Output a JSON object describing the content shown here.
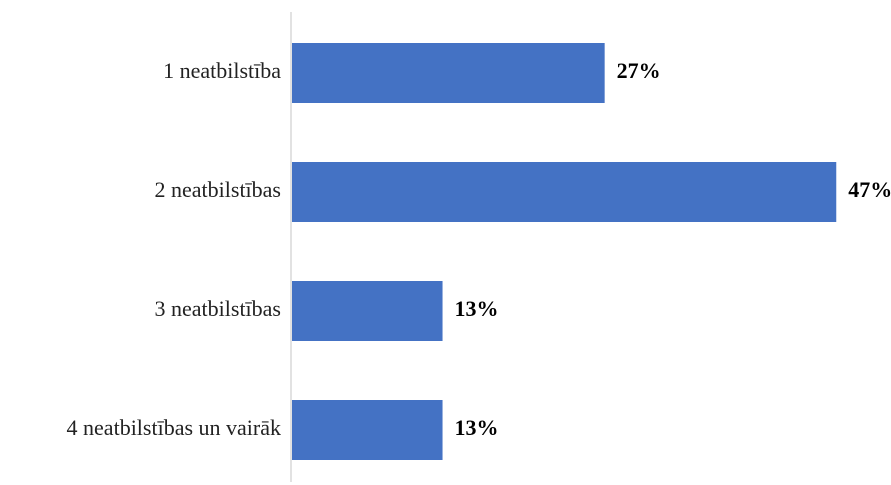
{
  "chart_data": {
    "type": "bar",
    "orientation": "horizontal",
    "categories": [
      "1 neatbilstība",
      "2 neatbilstības",
      "3 neatbilstības",
      "4 neatbilstības un vairāk"
    ],
    "values": [
      27,
      47,
      13,
      13
    ],
    "value_labels": [
      "27%",
      "47%",
      "13%",
      "13%"
    ],
    "unit": "%",
    "xlim": [
      0,
      47
    ],
    "grid": false,
    "legend": "none",
    "bar_color": "#4472C4",
    "axis_color": "#D9D9D9"
  }
}
